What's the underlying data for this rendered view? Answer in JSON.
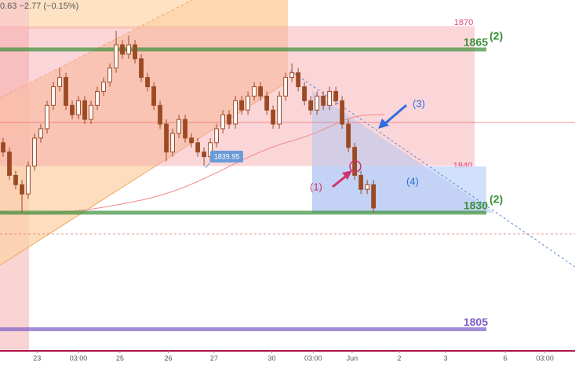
{
  "chart_data": {
    "type": "candlestick",
    "header": "0.63 −2.77 (−0.15%)",
    "color": "#9c4a24",
    "open": [
      1845,
      1843,
      1838,
      1836,
      1834,
      1840,
      1846,
      1848,
      1853,
      1857,
      1859,
      1853,
      1851,
      1854,
      1850,
      1853,
      1856,
      1858,
      1861,
      1866,
      1864,
      1866,
      1863,
      1859,
      1857,
      1853,
      1849,
      1843,
      1847,
      1850,
      1846,
      1845,
      1843,
      1842,
      1845,
      1848,
      1851,
      1849,
      1854,
      1852,
      1855,
      1857,
      1855,
      1852,
      1849,
      1855,
      1859,
      1860,
      1857,
      1854,
      1852,
      1855,
      1853,
      1856,
      1854,
      1849,
      1844,
      1838,
      1835,
      1836
    ],
    "high": [
      1846,
      1844,
      1839,
      1837,
      1841,
      1847,
      1849,
      1854,
      1858,
      1861,
      1860,
      1854,
      1855,
      1855,
      1854,
      1857,
      1859,
      1862,
      1869,
      1867,
      1868,
      1867,
      1864,
      1860,
      1858,
      1854,
      1850,
      1848,
      1851,
      1851,
      1847,
      1846,
      1844,
      1846,
      1849,
      1852,
      1852,
      1855,
      1855,
      1856,
      1858,
      1858,
      1856,
      1853,
      1856,
      1860,
      1862,
      1861,
      1858,
      1855,
      1856,
      1856,
      1857,
      1857,
      1855,
      1850,
      1845,
      1839,
      1837,
      1837
    ],
    "low": [
      1842,
      1837,
      1835,
      1830,
      1833,
      1839,
      1845,
      1847,
      1852,
      1856,
      1852,
      1850,
      1850,
      1849,
      1849,
      1852,
      1855,
      1857,
      1860,
      1863,
      1863,
      1862,
      1858,
      1856,
      1852,
      1848,
      1841,
      1842,
      1846,
      1845,
      1844,
      1842,
      1840,
      1841,
      1844,
      1847,
      1848,
      1848,
      1851,
      1851,
      1854,
      1854,
      1851,
      1848,
      1848,
      1854,
      1858,
      1856,
      1853,
      1851,
      1851,
      1852,
      1852,
      1853,
      1848,
      1843,
      1837,
      1834,
      1834,
      1830
    ],
    "close": [
      1843,
      1838,
      1836,
      1834,
      1840,
      1846,
      1848,
      1853,
      1857,
      1859,
      1853,
      1851,
      1854,
      1850,
      1853,
      1856,
      1858,
      1861,
      1866,
      1864,
      1866,
      1863,
      1859,
      1857,
      1853,
      1849,
      1843,
      1847,
      1850,
      1846,
      1845,
      1843,
      1842,
      1845,
      1848,
      1851,
      1849,
      1854,
      1852,
      1855,
      1857,
      1855,
      1852,
      1849,
      1855,
      1859,
      1860,
      1857,
      1854,
      1852,
      1855,
      1853,
      1856,
      1854,
      1849,
      1844,
      1838,
      1835,
      1836,
      1831
    ],
    "xlim": [
      0,
      91.6
    ],
    "xticks": [
      {
        "value": 5.9,
        "label": "23"
      },
      {
        "value": 12.5,
        "label": "03:00"
      },
      {
        "value": 19.1,
        "label": "25"
      },
      {
        "value": 26.8,
        "label": "26"
      },
      {
        "value": 34.1,
        "label": "27"
      },
      {
        "value": 43.3,
        "label": "30"
      },
      {
        "value": 49.9,
        "label": "03:00"
      },
      {
        "value": 56.1,
        "label": "Jun"
      },
      {
        "value": 63.6,
        "label": "2"
      },
      {
        "value": 71,
        "label": "3"
      },
      {
        "value": 80.5,
        "label": "6"
      },
      {
        "value": 86.8,
        "label": "03:00"
      }
    ],
    "ylim": [
      1800.7,
      1875.6
    ],
    "zone": [
      1870,
      1840
    ],
    "zone_color": "#e0407a",
    "levels": [
      {
        "value": 1865,
        "color": "#3a8f3a",
        "note": "(2)"
      },
      {
        "value": 1830,
        "color": "#3a8f3a",
        "note": "(2)"
      },
      {
        "value": 1805,
        "color": "#7b5cc4"
      }
    ],
    "price_label": 1839.95,
    "annotations": [
      "(1)",
      "(3)",
      "(4)"
    ]
  }
}
